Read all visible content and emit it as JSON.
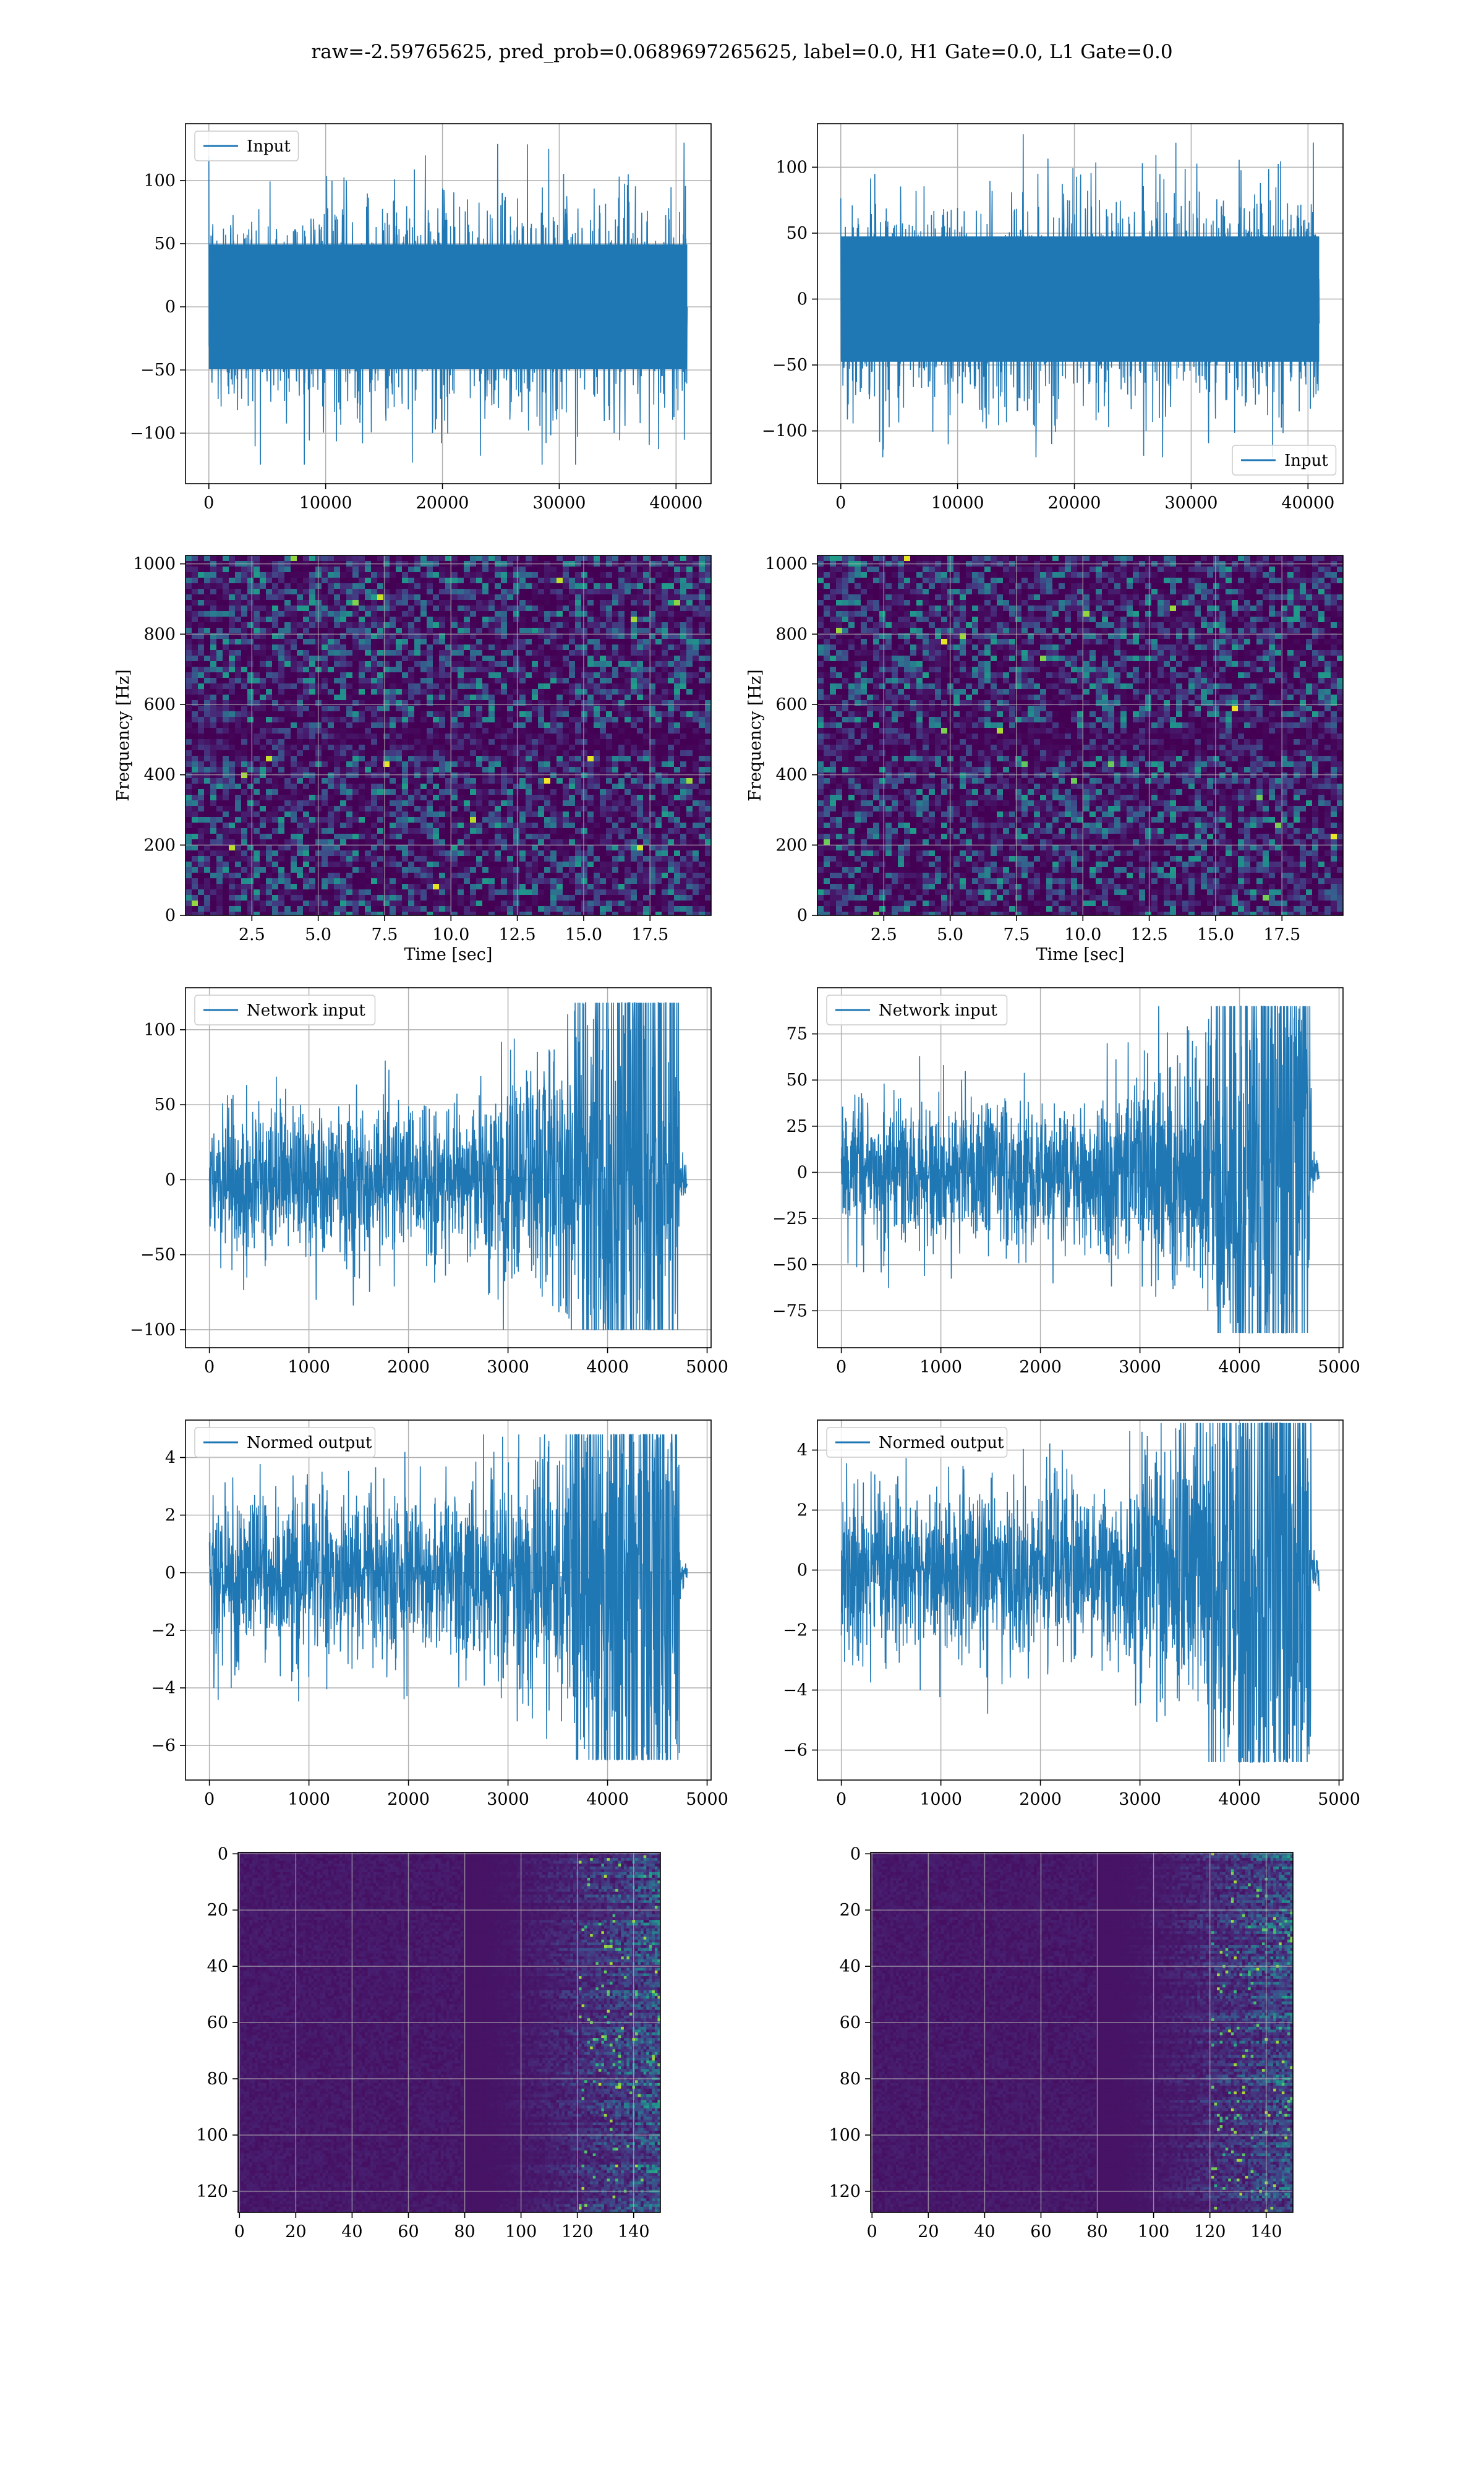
{
  "title": "raw=-2.59765625, pred_prob=0.0689697265625, label=0.0, H1 Gate=0.0, L1 Gate=0.0",
  "colors": {
    "line": "#1f77b4",
    "grid": "#b0b0b0",
    "viridis": [
      "#440154",
      "#482475",
      "#414487",
      "#355f8d",
      "#2a788e",
      "#21918c",
      "#22a884",
      "#44bf70",
      "#7ad151",
      "#bddf26",
      "#fde725"
    ]
  },
  "chart_data": [
    {
      "type": "line",
      "panel": "row1-left",
      "series": [
        {
          "name": "Input",
          "n_points": 40960,
          "approx_mean": 0,
          "approx_peak_range": [
            -125,
            130
          ]
        }
      ],
      "xlim": [
        -2000,
        43000
      ],
      "ylim": [
        -140,
        145
      ],
      "xticks": [
        0,
        10000,
        20000,
        30000,
        40000
      ],
      "yticks": [
        -100,
        -50,
        0,
        50,
        100
      ],
      "tick_labels_x": [
        "0",
        "10000",
        "20000",
        "30000",
        "40000"
      ],
      "tick_labels_y": [
        "−100",
        "−50",
        "0",
        "50",
        "100"
      ],
      "legend": "upper left",
      "grid": true
    },
    {
      "type": "line",
      "panel": "row1-right",
      "series": [
        {
          "name": "Input",
          "n_points": 40960,
          "approx_mean": 0,
          "approx_peak_range": [
            -120,
            125
          ]
        }
      ],
      "xlim": [
        -2000,
        43000
      ],
      "ylim": [
        -140,
        133
      ],
      "xticks": [
        0,
        10000,
        20000,
        30000,
        40000
      ],
      "yticks": [
        -100,
        -50,
        0,
        50,
        100
      ],
      "tick_labels_x": [
        "0",
        "10000",
        "20000",
        "30000",
        "40000"
      ],
      "tick_labels_y": [
        "−100",
        "−50",
        "0",
        "50",
        "100"
      ],
      "legend": "lower right",
      "grid": true
    },
    {
      "type": "heatmap",
      "panel": "row2-left",
      "xlabel": "Time [sec]",
      "ylabel": "Frequency [Hz]",
      "xlim": [
        0,
        19.8
      ],
      "ylim": [
        0,
        1024
      ],
      "xticks": [
        2.5,
        5.0,
        7.5,
        10.0,
        12.5,
        15.0,
        17.5
      ],
      "yticks": [
        0,
        200,
        400,
        600,
        800,
        1000
      ],
      "tick_labels_x": [
        "2.5",
        "5.0",
        "7.5",
        "10.0",
        "12.5",
        "15.0",
        "17.5"
      ],
      "tick_labels_y": [
        "0",
        "200",
        "400",
        "600",
        "800",
        "1000"
      ],
      "colormap": "viridis",
      "grid": true
    },
    {
      "type": "heatmap",
      "panel": "row2-right",
      "xlabel": "Time [sec]",
      "ylabel": "Frequency [Hz]",
      "xlim": [
        0,
        19.8
      ],
      "ylim": [
        0,
        1024
      ],
      "xticks": [
        2.5,
        5.0,
        7.5,
        10.0,
        12.5,
        15.0,
        17.5
      ],
      "yticks": [
        0,
        200,
        400,
        600,
        800,
        1000
      ],
      "tick_labels_x": [
        "2.5",
        "5.0",
        "7.5",
        "10.0",
        "12.5",
        "15.0",
        "17.5"
      ],
      "tick_labels_y": [
        "0",
        "200",
        "400",
        "600",
        "800",
        "1000"
      ],
      "colormap": "viridis",
      "grid": true
    },
    {
      "type": "line",
      "panel": "row3-left",
      "series": [
        {
          "name": "Network input",
          "n_points": 4800,
          "approx_mean": 0,
          "approx_peak_range": [
            -100,
            118
          ]
        }
      ],
      "xlim": [
        -240,
        5040
      ],
      "ylim": [
        -112,
        128
      ],
      "xticks": [
        0,
        1000,
        2000,
        3000,
        4000,
        5000
      ],
      "yticks": [
        -100,
        -50,
        0,
        50,
        100
      ],
      "tick_labels_x": [
        "0",
        "1000",
        "2000",
        "3000",
        "4000",
        "5000"
      ],
      "tick_labels_y": [
        "−100",
        "−50",
        "0",
        "50",
        "100"
      ],
      "legend": "upper left",
      "grid": true
    },
    {
      "type": "line",
      "panel": "row3-right",
      "series": [
        {
          "name": "Network input",
          "n_points": 4800,
          "approx_mean": 0,
          "approx_peak_range": [
            -87,
            90
          ]
        }
      ],
      "xlim": [
        -240,
        5040
      ],
      "ylim": [
        -95,
        100
      ],
      "xticks": [
        0,
        1000,
        2000,
        3000,
        4000,
        5000
      ],
      "yticks": [
        -75,
        -50,
        -25,
        0,
        25,
        50,
        75
      ],
      "tick_labels_x": [
        "0",
        "1000",
        "2000",
        "3000",
        "4000",
        "5000"
      ],
      "tick_labels_y": [
        "−75",
        "−50",
        "−25",
        "0",
        "25",
        "50",
        "75"
      ],
      "legend": "upper left",
      "grid": true
    },
    {
      "type": "line",
      "panel": "row4-left",
      "series": [
        {
          "name": "Normed output",
          "n_points": 4800,
          "approx_mean": 0,
          "approx_peak_range": [
            -6.5,
            4.8
          ]
        }
      ],
      "xlim": [
        -240,
        5040
      ],
      "ylim": [
        -7.2,
        5.3
      ],
      "xticks": [
        0,
        1000,
        2000,
        3000,
        4000,
        5000
      ],
      "yticks": [
        -6,
        -4,
        -2,
        0,
        2,
        4
      ],
      "tick_labels_x": [
        "0",
        "1000",
        "2000",
        "3000",
        "4000",
        "5000"
      ],
      "tick_labels_y": [
        "−6",
        "−4",
        "−2",
        "0",
        "2",
        "4"
      ],
      "legend": "upper left",
      "grid": true
    },
    {
      "type": "line",
      "panel": "row4-right",
      "series": [
        {
          "name": "Normed output",
          "n_points": 4800,
          "approx_mean": 0,
          "approx_peak_range": [
            -6.4,
            4.9
          ]
        }
      ],
      "xlim": [
        -240,
        5040
      ],
      "ylim": [
        -7.0,
        5.0
      ],
      "xticks": [
        0,
        1000,
        2000,
        3000,
        4000,
        5000
      ],
      "yticks": [
        -6,
        -4,
        -2,
        0,
        2,
        4
      ],
      "tick_labels_x": [
        "0",
        "1000",
        "2000",
        "3000",
        "4000",
        "5000"
      ],
      "tick_labels_y": [
        "−6",
        "−4",
        "−2",
        "0",
        "2",
        "4"
      ],
      "legend": "upper left",
      "grid": true
    },
    {
      "type": "heatmap",
      "panel": "row5-left",
      "xlim": [
        -0.5,
        149.5
      ],
      "ylim": [
        127.5,
        -0.5
      ],
      "xticks": [
        0,
        20,
        40,
        60,
        80,
        100,
        120,
        140
      ],
      "yticks": [
        0,
        20,
        40,
        60,
        80,
        100,
        120
      ],
      "tick_labels_x": [
        "0",
        "20",
        "40",
        "60",
        "80",
        "100",
        "120",
        "140"
      ],
      "tick_labels_y": [
        "0",
        "20",
        "40",
        "60",
        "80",
        "100",
        "120"
      ],
      "colormap": "viridis",
      "grid": true,
      "shape": [
        128,
        150
      ]
    },
    {
      "type": "heatmap",
      "panel": "row5-right",
      "xlim": [
        -0.5,
        149.5
      ],
      "ylim": [
        127.5,
        -0.5
      ],
      "xticks": [
        0,
        20,
        40,
        60,
        80,
        100,
        120,
        140
      ],
      "yticks": [
        0,
        20,
        40,
        60,
        80,
        100,
        120
      ],
      "tick_labels_x": [
        "0",
        "20",
        "40",
        "60",
        "80",
        "100",
        "120",
        "140"
      ],
      "tick_labels_y": [
        "0",
        "20",
        "40",
        "60",
        "80",
        "100",
        "120"
      ],
      "colormap": "viridis",
      "grid": true,
      "shape": [
        128,
        150
      ]
    }
  ]
}
